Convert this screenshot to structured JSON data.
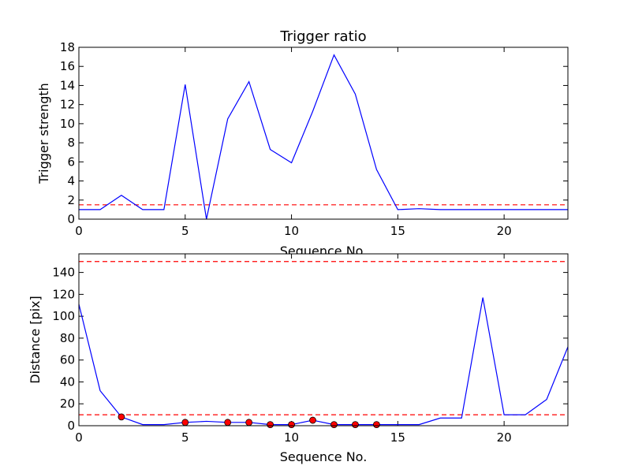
{
  "chart_data": [
    {
      "type": "line",
      "title": "Trigger ratio",
      "xlabel": "Sequence No.",
      "ylabel": "Trigger strength",
      "xlim": [
        0,
        23
      ],
      "ylim": [
        0,
        18
      ],
      "xticks": [
        0,
        5,
        10,
        15,
        20
      ],
      "yticks": [
        0,
        2,
        4,
        6,
        8,
        10,
        12,
        14,
        16,
        18
      ],
      "grid": false,
      "series": [
        {
          "color": "#0000ff",
          "x": [
            0,
            1,
            2,
            3,
            4,
            5,
            6,
            7,
            8,
            9,
            10,
            11,
            12,
            13,
            14,
            15,
            16,
            17,
            18,
            19,
            20,
            21,
            22,
            23
          ],
          "values": [
            1.0,
            1.0,
            2.5,
            1.0,
            1.0,
            14.1,
            0.0,
            10.5,
            14.4,
            7.3,
            5.9,
            11.3,
            17.2,
            13.1,
            5.2,
            1.0,
            1.1,
            1.0,
            1.0,
            1.0,
            1.0,
            1.0,
            1.0,
            1.0
          ]
        }
      ],
      "threshold_lines": [
        {
          "y": 1.5,
          "color": "#ff0000",
          "style": "dashed"
        }
      ]
    },
    {
      "type": "line",
      "title": "",
      "xlabel": "Sequence No.",
      "ylabel": "Distance [pix]",
      "xlim": [
        0,
        23
      ],
      "ylim": [
        0,
        157
      ],
      "xticks": [
        0,
        5,
        10,
        15,
        20
      ],
      "yticks": [
        0,
        20,
        40,
        60,
        80,
        100,
        120,
        140
      ],
      "grid": false,
      "series": [
        {
          "color": "#0000ff",
          "x": [
            0,
            1,
            2,
            3,
            4,
            5,
            6,
            7,
            8,
            9,
            10,
            11,
            12,
            13,
            14,
            15,
            16,
            17,
            18,
            19,
            20,
            21,
            22,
            23
          ],
          "values": [
            111,
            32,
            8,
            1,
            1,
            3,
            4,
            3,
            3,
            1,
            1,
            5,
            1,
            1,
            1,
            1,
            1,
            7,
            7,
            117,
            10,
            10,
            24,
            72
          ]
        },
        {
          "marker": "circle",
          "color": "#ff0000",
          "line": false,
          "x": [
            2,
            5,
            7,
            8,
            9,
            10,
            11,
            12,
            13,
            14
          ],
          "values": [
            8,
            3,
            3,
            3,
            1,
            1,
            5,
            1,
            1,
            1
          ]
        }
      ],
      "threshold_lines": [
        {
          "y": 150,
          "color": "#ff0000",
          "style": "dashed"
        },
        {
          "y": 10,
          "color": "#ff0000",
          "style": "dashed"
        }
      ]
    }
  ]
}
